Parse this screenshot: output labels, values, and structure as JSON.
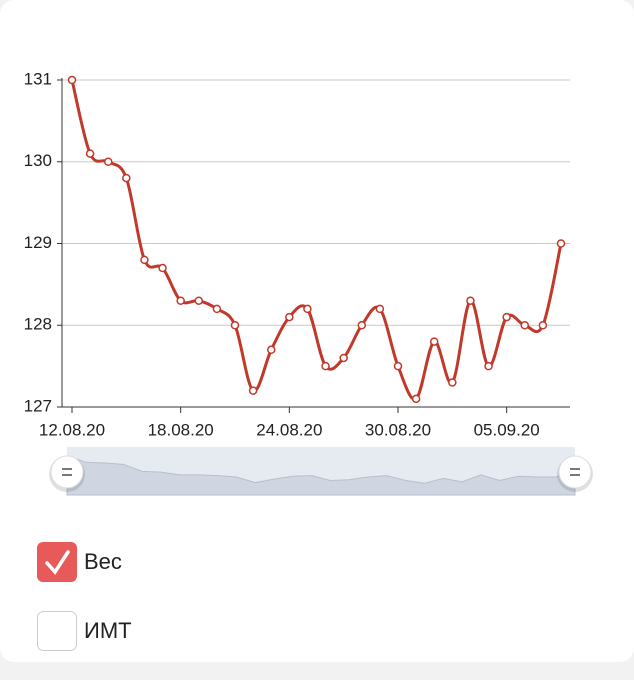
{
  "chart_data": {
    "type": "line",
    "x": [
      "2020-08-12",
      "2020-08-13",
      "2020-08-14",
      "2020-08-15",
      "2020-08-16",
      "2020-08-17",
      "2020-08-18",
      "2020-08-19",
      "2020-08-20",
      "2020-08-21",
      "2020-08-22",
      "2020-08-23",
      "2020-08-24",
      "2020-08-25",
      "2020-08-26",
      "2020-08-27",
      "2020-08-28",
      "2020-08-29",
      "2020-08-30",
      "2020-08-31",
      "2020-09-01",
      "2020-09-02",
      "2020-09-03",
      "2020-09-04",
      "2020-09-05",
      "2020-09-06",
      "2020-09-07",
      "2020-09-08"
    ],
    "series": [
      {
        "color": "#c0392b",
        "values": [
          131,
          130.1,
          130.0,
          129.8,
          128.8,
          128.7,
          128.3,
          128.3,
          128.2,
          128.0,
          127.2,
          127.7,
          128.1,
          128.2,
          127.5,
          127.6,
          128.0,
          128.2,
          127.5,
          127.1,
          127.8,
          127.3,
          128.3,
          127.5,
          128.1,
          128.0,
          128.0,
          129.0
        ]
      }
    ],
    "xlim": [
      "2020-08-12",
      "2020-09-08"
    ],
    "xticks": [
      {
        "value": "2020-08-12",
        "label": "12.08.20"
      },
      {
        "value": "2020-08-18",
        "label": "18.08.20"
      },
      {
        "value": "2020-08-24",
        "label": "24.08.20"
      },
      {
        "value": "2020-08-30",
        "label": "30.08.20"
      },
      {
        "value": "2020-09-05",
        "label": "05.09.20"
      }
    ],
    "ylim": [
      127,
      131
    ],
    "yticks": [
      127,
      128,
      129,
      130,
      131
    ],
    "grid": true
  },
  "toggles": [
    {
      "label": "Вес",
      "checked": true
    },
    {
      "label": "ИМТ",
      "checked": false
    }
  ]
}
